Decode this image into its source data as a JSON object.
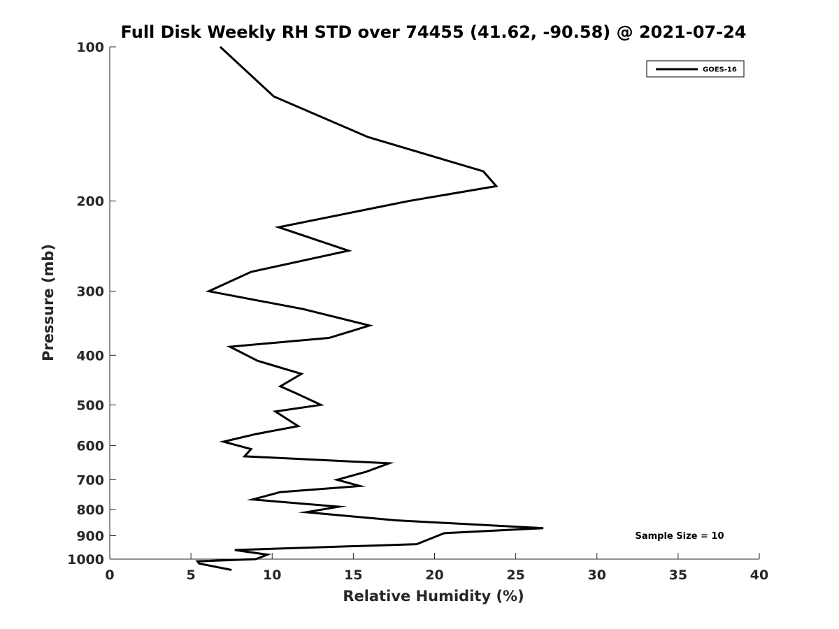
{
  "chart_data": {
    "type": "line",
    "title": "Full Disk Weekly RH STD over 74455 (41.62, -90.58) @ 2021-07-24",
    "xlabel": "Relative Humidity (%)",
    "ylabel": "Pressure (mb)",
    "xlim": [
      0,
      40
    ],
    "ylim": [
      100,
      1000
    ],
    "y_scale": "log",
    "y_reversed": true,
    "x_ticks": [
      "0",
      "5",
      "10",
      "15",
      "20",
      "25",
      "30",
      "35",
      "40"
    ],
    "y_ticks": [
      "100",
      "200",
      "300",
      "400",
      "500",
      "600",
      "700",
      "800",
      "900",
      "1000"
    ],
    "grid": false,
    "legend_position": "top-right",
    "annotation": "Sample Size = 10",
    "series": [
      {
        "name": "GOES-16",
        "color": "#000000",
        "x": [
          6.8,
          10.1,
          15.9,
          23.0,
          23.8,
          18.4,
          10.4,
          14.7,
          8.7,
          6.1,
          11.9,
          16.0,
          13.5,
          7.4,
          9.1,
          11.8,
          10.5,
          11.5,
          13.0,
          10.2,
          11.6,
          9.0,
          7.0,
          8.7,
          8.3,
          17.2,
          15.8,
          14.0,
          15.4,
          10.5,
          8.8,
          14.1,
          12.1,
          17.6,
          26.7,
          20.6,
          18.9,
          7.7,
          9.7,
          9.0,
          5.4,
          5.5,
          7.5
        ],
        "y": [
          100,
          125,
          150,
          175,
          187,
          200,
          225,
          250,
          275,
          300,
          325,
          350,
          370,
          385,
          410,
          435,
          460,
          475,
          500,
          515,
          550,
          570,
          590,
          610,
          630,
          650,
          675,
          700,
          720,
          740,
          765,
          790,
          810,
          840,
          870,
          890,
          935,
          960,
          980,
          1000,
          1010,
          1020,
          1050
        ]
      }
    ]
  }
}
